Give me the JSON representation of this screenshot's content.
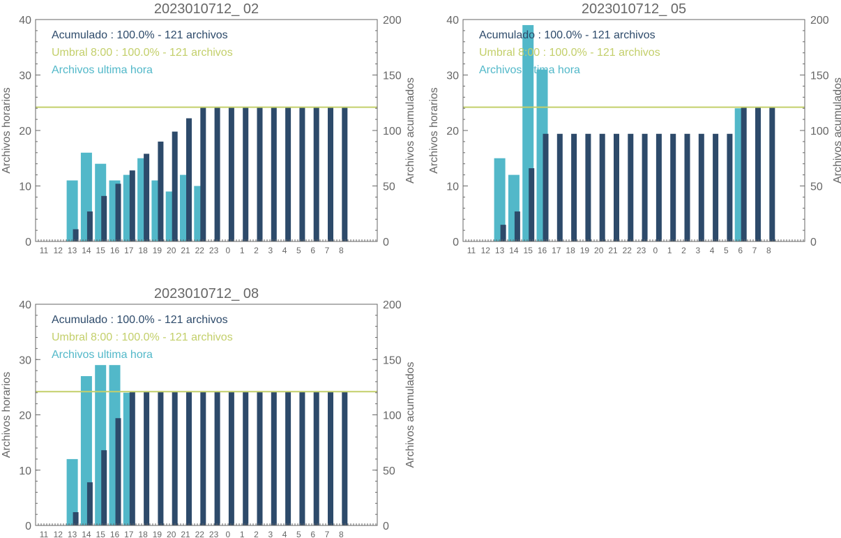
{
  "colors": {
    "accumulated": "#2d4a6a",
    "hourly": "#52b8c9",
    "threshold": "#c3cf6a",
    "axis": "#666666",
    "title": "#666666"
  },
  "chart_data": [
    {
      "type": "bar",
      "title": "2023010712_ 02",
      "ylabel_left": "Archivos horarios",
      "ylabel_right": "Archivos acumulados",
      "ylim_left": [
        0,
        40
      ],
      "ylim_right": [
        0,
        200
      ],
      "left_ticks": [
        "0",
        "10",
        "20",
        "30",
        "40"
      ],
      "right_ticks": [
        "0",
        "50",
        "100",
        "150",
        "200"
      ],
      "categories": [
        "11",
        "12",
        "13",
        "14",
        "15",
        "16",
        "17",
        "18",
        "19",
        "20",
        "21",
        "22",
        "23",
        "0",
        "1",
        "2",
        "3",
        "4",
        "5",
        "6",
        "7",
        "8"
      ],
      "legend": {
        "accumulated": "Acumulado : 100.0% - 121 archivos",
        "threshold": "Umbral 8:00 : 100.0% - 121 archivos",
        "hourly": "Archivos ultima hora"
      },
      "threshold": 121,
      "series": [
        {
          "name": "Archivos ultima hora",
          "axis": "left",
          "values": [
            0,
            0,
            11,
            16,
            14,
            11,
            12,
            15,
            11,
            9,
            12,
            10,
            0,
            0,
            0,
            0,
            0,
            0,
            0,
            0,
            0,
            0
          ]
        },
        {
          "name": "Acumulado",
          "axis": "right",
          "values": [
            0,
            0,
            11,
            27,
            41,
            52,
            64,
            79,
            90,
            99,
            111,
            121,
            121,
            121,
            121,
            121,
            121,
            121,
            121,
            121,
            121,
            121
          ]
        }
      ]
    },
    {
      "type": "bar",
      "title": "2023010712_ 05",
      "ylabel_left": "Archivos horarios",
      "ylabel_right": "Archivos acumulados",
      "ylim_left": [
        0,
        40
      ],
      "ylim_right": [
        0,
        200
      ],
      "left_ticks": [
        "0",
        "10",
        "20",
        "30",
        "40"
      ],
      "right_ticks": [
        "0",
        "50",
        "100",
        "150",
        "200"
      ],
      "categories": [
        "11",
        "12",
        "13",
        "14",
        "15",
        "16",
        "17",
        "18",
        "19",
        "20",
        "21",
        "22",
        "23",
        "0",
        "1",
        "2",
        "3",
        "4",
        "5",
        "6",
        "7",
        "8"
      ],
      "legend": {
        "accumulated": "Acumulado : 100.0% - 121 archivos",
        "threshold": "Umbral 8:00 : 100.0% - 121 archivos",
        "hourly": "Archivos ultima hora"
      },
      "threshold": 121,
      "series": [
        {
          "name": "Archivos ultima hora",
          "axis": "left",
          "values": [
            0,
            0,
            15,
            12,
            39,
            31,
            0,
            0,
            0,
            0,
            0,
            0,
            0,
            0,
            0,
            0,
            0,
            0,
            0,
            24,
            0,
            0
          ]
        },
        {
          "name": "Acumulado",
          "axis": "right",
          "values": [
            0,
            0,
            15,
            27,
            66,
            97,
            97,
            97,
            97,
            97,
            97,
            97,
            97,
            97,
            97,
            97,
            97,
            97,
            97,
            121,
            121,
            121
          ]
        }
      ]
    },
    {
      "type": "bar",
      "title": "2023010712_ 08",
      "ylabel_left": "Archivos horarios",
      "ylabel_right": "Archivos acumulados",
      "ylim_left": [
        0,
        40
      ],
      "ylim_right": [
        0,
        200
      ],
      "left_ticks": [
        "0",
        "10",
        "20",
        "30",
        "40"
      ],
      "right_ticks": [
        "0",
        "50",
        "100",
        "150",
        "200"
      ],
      "categories": [
        "11",
        "12",
        "13",
        "14",
        "15",
        "16",
        "17",
        "18",
        "19",
        "20",
        "21",
        "22",
        "23",
        "0",
        "1",
        "2",
        "3",
        "4",
        "5",
        "6",
        "7",
        "8"
      ],
      "legend": {
        "accumulated": "Acumulado : 100.0% - 121 archivos",
        "threshold": "Umbral 8:00 : 100.0% - 121 archivos",
        "hourly": "Archivos ultima hora"
      },
      "threshold": 121,
      "series": [
        {
          "name": "Archivos ultima hora",
          "axis": "left",
          "values": [
            0,
            0,
            12,
            27,
            29,
            29,
            24,
            0,
            0,
            0,
            0,
            0,
            0,
            0,
            0,
            0,
            0,
            0,
            0,
            0,
            0,
            0
          ]
        },
        {
          "name": "Acumulado",
          "axis": "right",
          "values": [
            0,
            0,
            12,
            39,
            68,
            97,
            121,
            121,
            121,
            121,
            121,
            121,
            121,
            121,
            121,
            121,
            121,
            121,
            121,
            121,
            121,
            121
          ]
        }
      ]
    }
  ]
}
